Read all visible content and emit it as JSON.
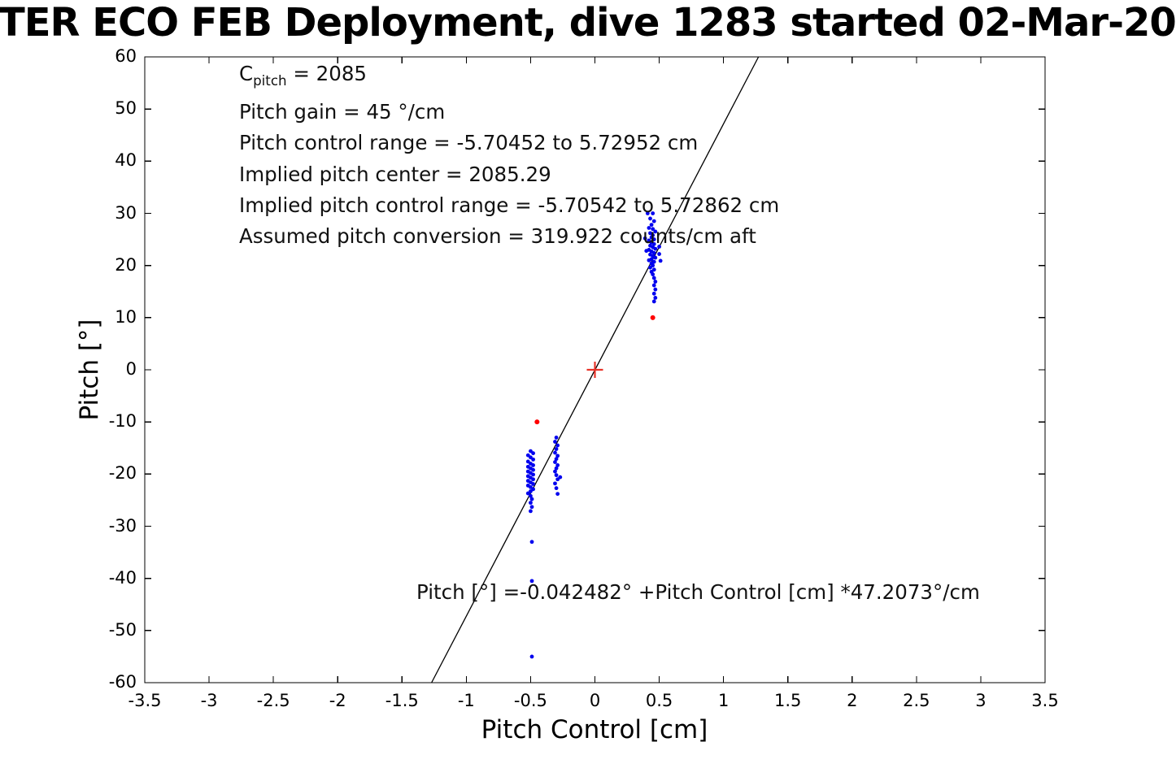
{
  "title": "TER ECO FEB Deployment, dive 1283 started 02-Mar-20",
  "chart_data": {
    "type": "scatter",
    "title": "TER ECO FEB Deployment, dive 1283 started 02-Mar-20",
    "xlabel": "Pitch Control [cm]",
    "ylabel": "Pitch [°]",
    "xlim": [
      -3.5,
      3.5
    ],
    "ylim": [
      -60,
      60
    ],
    "grid": false,
    "legend": "none",
    "xticks": [
      -3.5,
      -3,
      -2.5,
      -2,
      -1.5,
      -1,
      -0.5,
      0,
      0.5,
      1,
      1.5,
      2,
      2.5,
      3,
      3.5
    ],
    "xtick_labels": [
      "-3.5",
      "-3",
      "-2.5",
      "-2",
      "-1.5",
      "-1",
      "-0.5",
      "0",
      "0.5",
      "1",
      "1.5",
      "2",
      "2.5",
      "3",
      "3.5"
    ],
    "yticks": [
      60,
      50,
      40,
      30,
      20,
      10,
      0,
      -10,
      -20,
      -30,
      -40,
      -50,
      -60
    ],
    "ytick_labels": [
      "60",
      "50",
      "40",
      "30",
      "20",
      "10",
      "0",
      "-10",
      "-20",
      "-30",
      "-40",
      "-50",
      "-60"
    ],
    "annotations": {
      "info_lines": [
        {
          "prefix": "C",
          "sub": "pitch",
          "rest": " = 2085"
        },
        "Pitch gain = 45 °/cm",
        "Pitch control range = -5.70452 to 5.72952 cm",
        "Implied pitch center = 2085.29",
        "Implied pitch control range = -5.70542 to 5.72862 cm",
        "Assumed pitch conversion = 319.922 counts/cm aft"
      ],
      "fit_equation": "Pitch [°] =-0.042482° +Pitch Control [cm] *47.2073°/cm"
    },
    "fit_line": {
      "intercept": -0.042482,
      "slope": 47.2073,
      "color": "#000000"
    },
    "series": [
      {
        "name": "blue_dots",
        "marker": "dot",
        "color": "#0000ee",
        "radius": 2.4,
        "points": [
          [
            0.41,
            30
          ],
          [
            0.45,
            30
          ],
          [
            0.43,
            29
          ],
          [
            0.46,
            28.5
          ],
          [
            0.44,
            27.8
          ],
          [
            0.42,
            27.2
          ],
          [
            0.45,
            27
          ],
          [
            0.47,
            26.5
          ],
          [
            0.43,
            26.2
          ],
          [
            0.45,
            25.8
          ],
          [
            0.44,
            25.4
          ],
          [
            0.46,
            25
          ],
          [
            0.42,
            24.8
          ],
          [
            0.44,
            24.4
          ],
          [
            0.46,
            24.1
          ],
          [
            0.43,
            23.8
          ],
          [
            0.45,
            23.5
          ],
          [
            0.47,
            23.2
          ],
          [
            0.42,
            23
          ],
          [
            0.44,
            22.7
          ],
          [
            0.46,
            22.4
          ],
          [
            0.43,
            22.1
          ],
          [
            0.45,
            21.8
          ],
          [
            0.47,
            21.5
          ],
          [
            0.44,
            21.2
          ],
          [
            0.42,
            21
          ],
          [
            0.46,
            20.7
          ],
          [
            0.44,
            20.4
          ],
          [
            0.45,
            20
          ],
          [
            0.43,
            19.6
          ],
          [
            0.46,
            19.2
          ],
          [
            0.44,
            18.8
          ],
          [
            0.45,
            18.3
          ],
          [
            0.46,
            17.6
          ],
          [
            0.47,
            16.9
          ],
          [
            0.46,
            16.2
          ],
          [
            0.47,
            15.4
          ],
          [
            0.46,
            14.6
          ],
          [
            0.47,
            13.8
          ],
          [
            0.46,
            13.1
          ],
          [
            0.5,
            23.6
          ],
          [
            0.5,
            22.2
          ],
          [
            0.51,
            20.9
          ],
          [
            0.39,
            25.2
          ],
          [
            0.4,
            22.8
          ],
          [
            -0.5,
            -15.6
          ],
          [
            -0.48,
            -16
          ],
          [
            -0.52,
            -16.4
          ],
          [
            -0.5,
            -16.8
          ],
          [
            -0.48,
            -17.2
          ],
          [
            -0.52,
            -17.6
          ],
          [
            -0.5,
            -18
          ],
          [
            -0.48,
            -18.3
          ],
          [
            -0.52,
            -18.6
          ],
          [
            -0.5,
            -18.9
          ],
          [
            -0.48,
            -19.2
          ],
          [
            -0.52,
            -19.5
          ],
          [
            -0.5,
            -19.8
          ],
          [
            -0.48,
            -20.1
          ],
          [
            -0.52,
            -20.4
          ],
          [
            -0.5,
            -20.7
          ],
          [
            -0.48,
            -21
          ],
          [
            -0.52,
            -21.3
          ],
          [
            -0.5,
            -21.6
          ],
          [
            -0.48,
            -21.9
          ],
          [
            -0.52,
            -22.2
          ],
          [
            -0.5,
            -22.5
          ],
          [
            -0.48,
            -22.9
          ],
          [
            -0.5,
            -23.3
          ],
          [
            -0.52,
            -23.7
          ],
          [
            -0.5,
            -24.2
          ],
          [
            -0.49,
            -24.8
          ],
          [
            -0.5,
            -25.5
          ],
          [
            -0.49,
            -26.3
          ],
          [
            -0.5,
            -27.1
          ],
          [
            -0.49,
            -33
          ],
          [
            -0.49,
            -40.5
          ],
          [
            -0.49,
            -55
          ],
          [
            -0.3,
            -13
          ],
          [
            -0.31,
            -13.8
          ],
          [
            -0.29,
            -14.5
          ],
          [
            -0.3,
            -15.2
          ],
          [
            -0.31,
            -15.9
          ],
          [
            -0.29,
            -16.5
          ],
          [
            -0.3,
            -17.1
          ],
          [
            -0.31,
            -17.7
          ],
          [
            -0.29,
            -18.3
          ],
          [
            -0.3,
            -18.9
          ],
          [
            -0.31,
            -19.5
          ],
          [
            -0.3,
            -20.2
          ],
          [
            -0.29,
            -21
          ],
          [
            -0.31,
            -21.8
          ],
          [
            -0.3,
            -22.7
          ],
          [
            -0.29,
            -23.8
          ],
          [
            -0.27,
            -20.6
          ]
        ]
      },
      {
        "name": "red_dots",
        "marker": "dot",
        "color": "#ff0000",
        "radius": 3,
        "points": [
          [
            0.45,
            10
          ],
          [
            -0.45,
            -10
          ]
        ]
      },
      {
        "name": "red_plus",
        "marker": "plus",
        "color": "#e8342a",
        "radius": 10,
        "points": [
          [
            0,
            0
          ]
        ]
      }
    ]
  }
}
